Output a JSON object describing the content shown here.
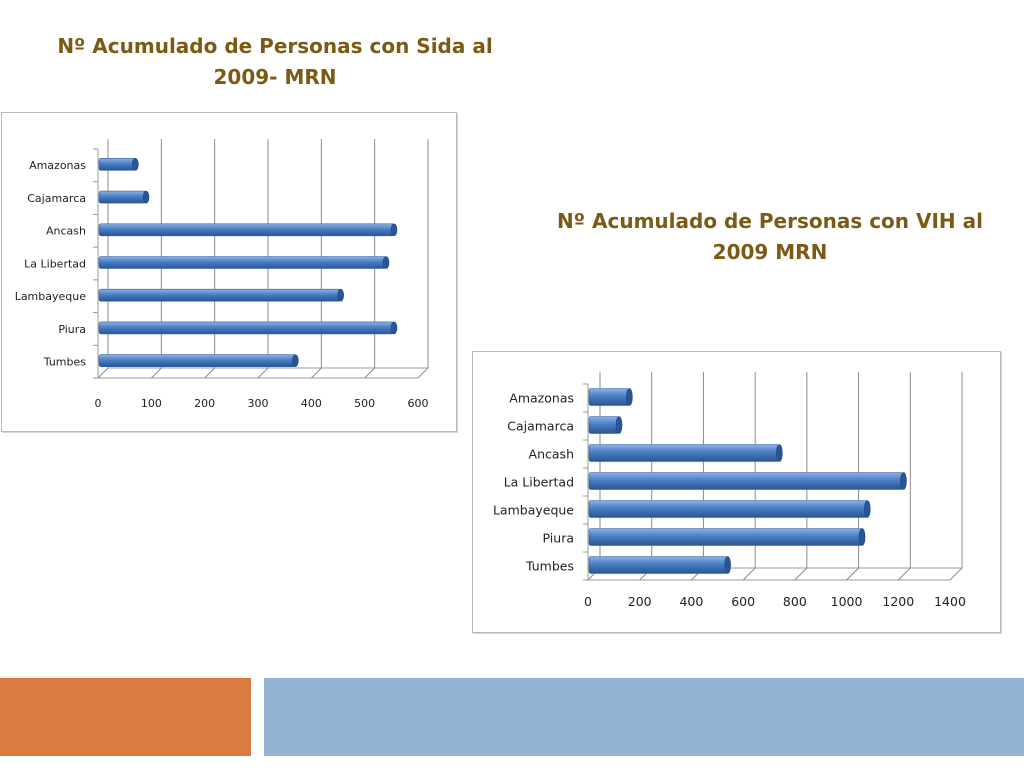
{
  "colors": {
    "title": "#7a5a14",
    "bar": "#4a7ec4",
    "bar_light": "#8db3e6",
    "bar_dark": "#2a5595",
    "footer_orange": "#d97b43",
    "footer_blue": "#94b4d4"
  },
  "chart_data": [
    {
      "type": "bar",
      "orientation": "horizontal",
      "title": "Nº Acumulado de Personas con Sida  al 2009- MRN",
      "categories": [
        "Amazonas",
        "Cajamarca",
        "Ancash",
        "La Libertad",
        "Lambayeque",
        "Piura",
        "Tumbes"
      ],
      "values": [
        70,
        90,
        555,
        540,
        455,
        555,
        370
      ],
      "xlim": [
        0,
        600
      ],
      "xticks": [
        0,
        100,
        200,
        300,
        400,
        500,
        600
      ],
      "grid": true,
      "legend": "none"
    },
    {
      "type": "bar",
      "orientation": "horizontal",
      "title": "Nº Acumulado de Personas con VIH al 2009 MRN",
      "categories": [
        "Amazonas",
        "Cajamarca",
        "Ancash",
        "La Libertad",
        "Lambayeque",
        "Piura",
        "Tumbes"
      ],
      "values": [
        160,
        120,
        740,
        1220,
        1080,
        1060,
        540
      ],
      "xlim": [
        0,
        1400
      ],
      "xticks": [
        0,
        200,
        400,
        600,
        800,
        1000,
        1200,
        1400
      ],
      "grid": true,
      "legend": "none"
    }
  ]
}
